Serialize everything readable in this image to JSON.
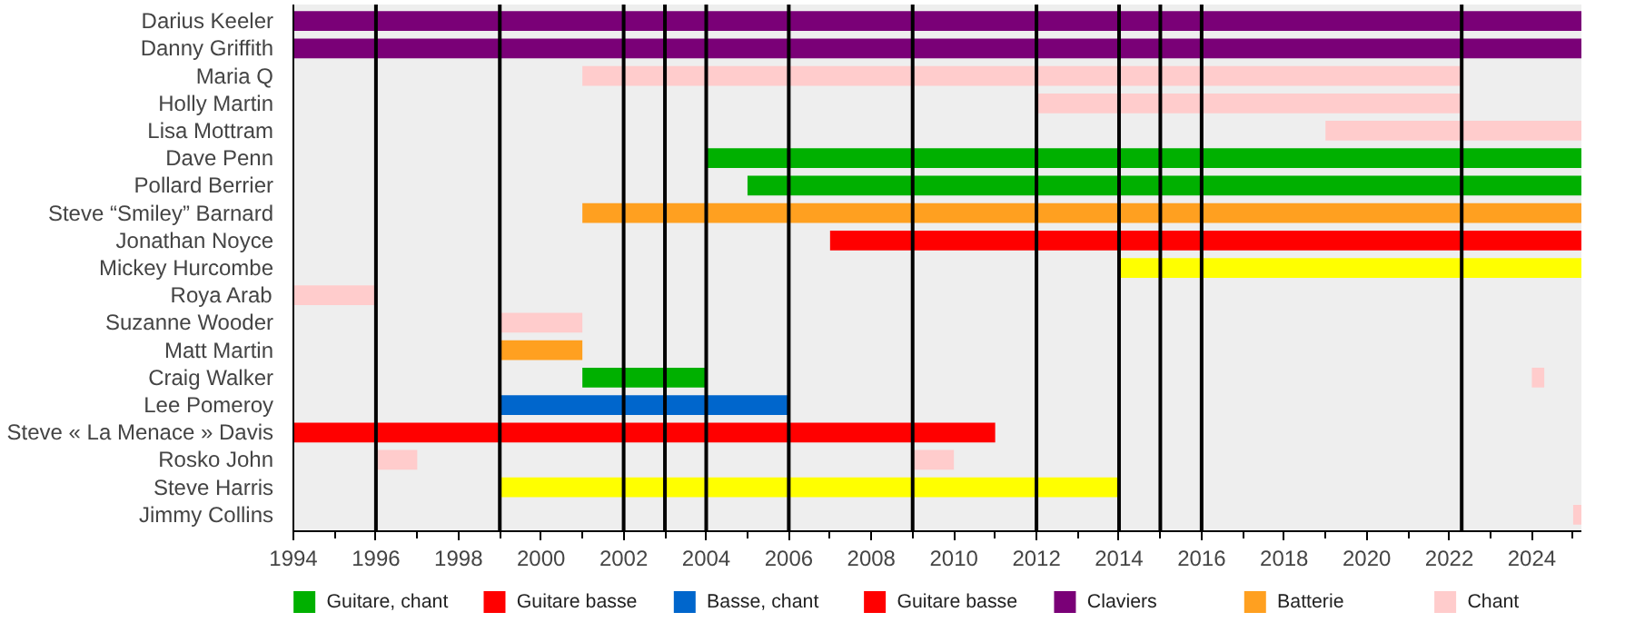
{
  "chart_data": {
    "type": "bar",
    "orientation": "horizontal",
    "categories": [
      "Darius Keeler",
      "Danny Griffith",
      "Maria Q",
      "Holly Martin",
      "Lisa Mottram",
      "Dave Penn",
      "Pollard Berrier",
      "Steve “Smiley” Barnard",
      "Jonathan Noyce",
      "Mickey Hurcombe",
      "Roya Arab",
      "Suzanne Wooder",
      "Matt Martin",
      "Craig Walker",
      "Lee Pomeroy",
      "Steve « La Menace » Davis",
      "Rosko John",
      "Steve Harris",
      "Jimmy Collins"
    ],
    "series": [
      {
        "name": "Guitare, chant",
        "color": "#00b000",
        "values": [
          null,
          null,
          null,
          null,
          null,
          21.2,
          20.2,
          null,
          null,
          null,
          null,
          null,
          null,
          3,
          null,
          null,
          null,
          null,
          null
        ],
        "base": [
          null,
          null,
          null,
          null,
          null,
          2004,
          2005,
          null,
          null,
          null,
          null,
          null,
          null,
          2001,
          null,
          null,
          null,
          null,
          null
        ]
      },
      {
        "name": "Guitare basse",
        "color": "#ff0000",
        "values": [
          null,
          null,
          null,
          null,
          null,
          null,
          null,
          null,
          18.2,
          null,
          null,
          null,
          null,
          null,
          null,
          null,
          null,
          null,
          null
        ],
        "base": [
          null,
          null,
          null,
          null,
          null,
          null,
          null,
          null,
          2007,
          null,
          null,
          null,
          null,
          null,
          null,
          null,
          null,
          null,
          null
        ]
      },
      {
        "name": "Basse, chant",
        "color": "#0066cc",
        "values": [
          null,
          null,
          null,
          null,
          null,
          null,
          null,
          null,
          null,
          null,
          null,
          null,
          null,
          null,
          7,
          null,
          null,
          null,
          null
        ],
        "base": [
          null,
          null,
          null,
          null,
          null,
          null,
          null,
          null,
          null,
          null,
          null,
          null,
          null,
          null,
          1999,
          null,
          null,
          null,
          null
        ]
      },
      {
        "name": "Guitare basse",
        "color": "#ff0000",
        "values": [
          null,
          null,
          null,
          null,
          null,
          null,
          null,
          null,
          null,
          null,
          null,
          null,
          null,
          null,
          null,
          17,
          null,
          null,
          null
        ],
        "base": [
          null,
          null,
          null,
          null,
          null,
          null,
          null,
          null,
          null,
          null,
          null,
          null,
          null,
          null,
          null,
          1994,
          null,
          null,
          null
        ]
      },
      {
        "name": "Claviers",
        "color": "#7a0077",
        "values": [
          31.2,
          31.2,
          null,
          null,
          null,
          null,
          null,
          null,
          null,
          null,
          null,
          null,
          null,
          null,
          null,
          null,
          null,
          null,
          null
        ],
        "base": [
          1994,
          1994,
          null,
          null,
          null,
          null,
          null,
          null,
          null,
          null,
          null,
          null,
          null,
          null,
          null,
          null,
          null,
          null,
          null
        ]
      },
      {
        "name": "Batterie",
        "color": "#ffa020",
        "values": [
          null,
          null,
          null,
          null,
          null,
          null,
          null,
          24.2,
          null,
          null,
          null,
          null,
          2,
          null,
          null,
          null,
          null,
          null,
          null
        ],
        "base": [
          null,
          null,
          null,
          null,
          null,
          null,
          null,
          2001,
          null,
          null,
          null,
          null,
          1999,
          null,
          null,
          null,
          null,
          null,
          null
        ]
      },
      {
        "name": "Chant",
        "color": "#ffcccc",
        "values": [
          null,
          null,
          21.3,
          10.3,
          6.2,
          null,
          null,
          null,
          null,
          null,
          2,
          2,
          null,
          0.3,
          null,
          null,
          1,
          null,
          0.2
        ],
        "base": [
          null,
          null,
          2001,
          2012,
          2019,
          null,
          null,
          null,
          null,
          null,
          1994,
          1999,
          null,
          2024,
          null,
          null,
          1996,
          null,
          2025
        ]
      },
      {
        "color": "#ffcccc",
        "values": [
          null,
          null,
          null,
          null,
          null,
          null,
          null,
          null,
          null,
          null,
          null,
          null,
          null,
          null,
          null,
          null,
          1,
          null,
          null
        ],
        "base": [
          null,
          null,
          null,
          null,
          null,
          null,
          null,
          null,
          null,
          null,
          null,
          null,
          null,
          null,
          null,
          null,
          2009,
          null,
          null
        ]
      },
      {
        "color": "#ffff00",
        "values": [
          null,
          null,
          null,
          null,
          null,
          null,
          null,
          null,
          null,
          11.2,
          null,
          null,
          null,
          null,
          null,
          null,
          null,
          15,
          null
        ],
        "base": [
          null,
          null,
          null,
          null,
          null,
          null,
          null,
          null,
          null,
          2014,
          null,
          null,
          null,
          null,
          null,
          null,
          null,
          1999,
          null
        ]
      }
    ],
    "xlim": [
      1994,
      2025.2
    ],
    "xticks": [
      1994,
      {
        "value": 1995,
        "label": null
      },
      1996,
      {
        "value": 1997,
        "label": null
      },
      1998,
      {
        "value": 1999,
        "label": null
      },
      2000,
      {
        "value": 2001,
        "label": null
      },
      2002,
      {
        "value": 2003,
        "label": null
      },
      2004,
      {
        "value": 2005,
        "label": null
      },
      2006,
      {
        "value": 2007,
        "label": null
      },
      2008,
      {
        "value": 2009,
        "label": null
      },
      2010,
      {
        "value": 2011,
        "label": null
      },
      2012,
      {
        "value": 2013,
        "label": null
      },
      2014,
      {
        "value": 2015,
        "label": null
      },
      2016,
      {
        "value": 2017,
        "label": null
      },
      2018,
      {
        "value": 2019,
        "label": null
      },
      2020,
      {
        "value": 2021,
        "label": null
      },
      2022,
      {
        "value": 2023,
        "label": null
      },
      2024,
      {
        "value": 2025,
        "label": null
      }
    ],
    "ref_lines": [
      {
        "axis": "x",
        "value": 1996,
        "color": "#000000"
      },
      {
        "axis": "x",
        "value": 1999,
        "color": "#000000"
      },
      {
        "axis": "x",
        "value": 2002,
        "color": "#000000"
      },
      {
        "axis": "x",
        "value": 2003,
        "color": "#000000"
      },
      {
        "axis": "x",
        "value": 2004,
        "color": "#000000"
      },
      {
        "axis": "x",
        "value": 2006,
        "color": "#000000"
      },
      {
        "axis": "x",
        "value": 2009,
        "color": "#000000"
      },
      {
        "axis": "x",
        "value": 2012,
        "color": "#000000"
      },
      {
        "axis": "x",
        "value": 2014,
        "color": "#000000"
      },
      {
        "axis": "x",
        "value": 2015,
        "color": "#000000"
      },
      {
        "axis": "x",
        "value": 2016,
        "color": "#000000"
      },
      {
        "axis": "x",
        "value": 2022.3,
        "color": "#000000"
      }
    ],
    "grid": false,
    "legend": "bottom"
  }
}
